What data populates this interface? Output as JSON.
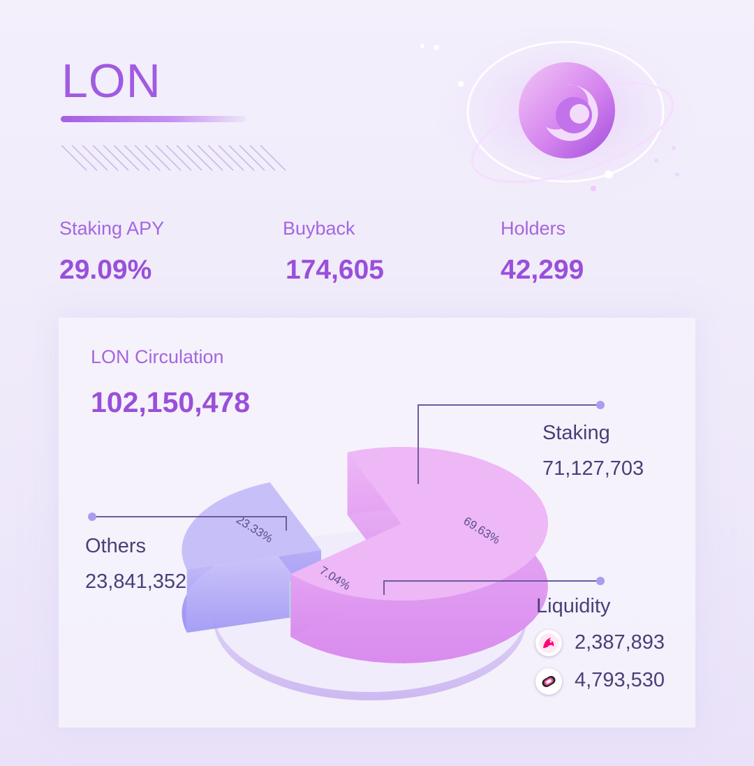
{
  "token": {
    "title": "LON"
  },
  "stats": [
    {
      "label": "Staking APY",
      "value": "29.09%"
    },
    {
      "label": "Buyback",
      "value": "174,605"
    },
    {
      "label": "Holders",
      "value": "42,299"
    }
  ],
  "circulation": {
    "label": "LON Circulation",
    "value": "102,150,478"
  },
  "chart_data": {
    "type": "pie",
    "title": "LON Circulation",
    "slices": [
      {
        "name": "Staking",
        "percent": 69.63,
        "label": "69.63%",
        "amount": "71,127,703",
        "color": "#e9a6f4"
      },
      {
        "name": "Liquidity",
        "percent": 7.04,
        "label": "7.04%",
        "amount": "",
        "color": "#b8ecdf"
      },
      {
        "name": "Others",
        "percent": 23.33,
        "label": "23.33%",
        "amount": "23,841,352",
        "color": "#b0a9f3"
      }
    ],
    "liquidity_pools": [
      {
        "icon": "uniswap-unicorn-icon",
        "amount": "2,387,893"
      },
      {
        "icon": "sushiswap-icon",
        "amount": "4,793,530"
      }
    ]
  },
  "colors": {
    "accent": "#9a4fd9",
    "text_dark": "#4a3f78"
  }
}
